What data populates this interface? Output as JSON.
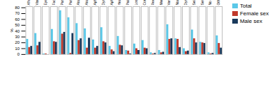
{
  "chart_data": {
    "type": "bar",
    "categories": [
      "Affected balance",
      "Visual disturbance",
      "Eye deviation",
      "Facial paresis",
      "Paresis (arm)",
      "Paresis (leg)",
      "Ataxia (arm)",
      "Ataxia (leg)",
      "Aphasia",
      "Dysarthria",
      "Aphasia and dysarthria",
      "Headache",
      "Pain",
      "Loss of consciousness",
      "Confusion",
      "Reduced attention",
      "Memory loss",
      "Vertigo",
      "Nausea + vomiting",
      "Dysphagia",
      "Seizure",
      "Sensory changes",
      "No symptoms",
      "Other"
    ],
    "series": [
      {
        "name": "Total",
        "color": "#5bc8e8",
        "values": [
          26,
          36,
          1,
          43,
          75,
          63,
          53,
          44,
          25,
          46,
          14,
          31,
          7,
          18,
          24,
          3,
          7,
          51,
          27,
          10,
          42,
          21,
          3,
          32
        ]
      },
      {
        "name": "Female sex",
        "color": "#c0392b",
        "values": [
          12,
          15,
          1,
          22,
          35,
          2,
          24,
          11,
          11,
          22,
          8,
          16,
          6,
          10,
          11,
          1,
          3,
          26,
          26,
          5,
          27,
          20,
          1,
          19
        ]
      },
      {
        "name": "Male sex",
        "color": "#1a3a5c",
        "values": [
          14,
          21,
          0,
          21,
          38,
          36,
          27,
          28,
          14,
          20,
          5,
          15,
          1,
          7,
          10,
          2,
          4,
          27,
          12,
          6,
          20,
          19,
          2,
          11
        ]
      }
    ],
    "ylabel": "%",
    "ylim": [
      0,
      82
    ],
    "yticks": [
      0,
      10,
      20,
      30,
      40,
      50,
      60,
      70,
      80
    ],
    "legend": "upper right"
  }
}
